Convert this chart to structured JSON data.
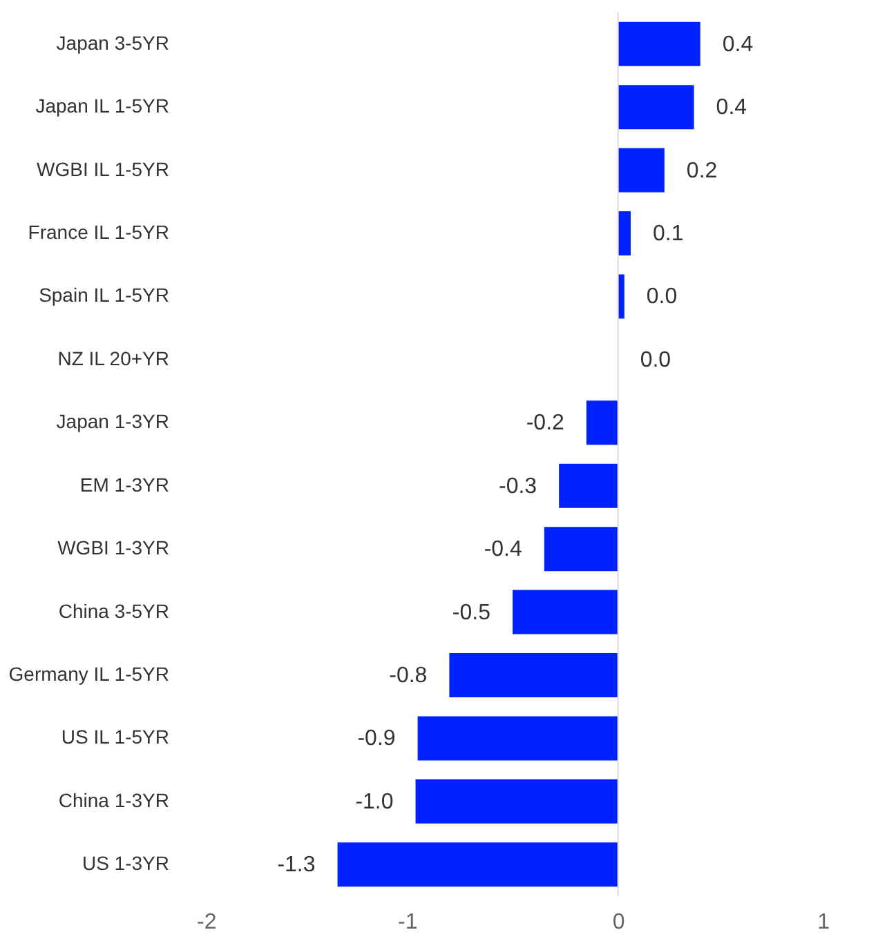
{
  "chart_data": {
    "type": "bar",
    "orientation": "horizontal",
    "categories": [
      "Japan 3-5YR",
      "Japan IL 1-5YR",
      "WGBI IL 1-5YR",
      "France IL 1-5YR",
      "Spain IL 1-5YR",
      "NZ IL 20+YR",
      "Japan 1-3YR",
      "EM 1-3YR",
      "WGBI 1-3YR",
      "China 3-5YR",
      "Germany IL 1-5YR",
      "US IL 1-5YR",
      "China 1-3YR",
      "US 1-3YR"
    ],
    "values": [
      0.39,
      0.36,
      0.22,
      0.06,
      0.03,
      0,
      -0.15,
      -0.28,
      -0.35,
      -0.5,
      -0.8,
      -0.95,
      -0.96,
      -1.33
    ],
    "value_labels": [
      "0.4",
      "0.4",
      "0.2",
      "0.1",
      "0.0",
      "0.0",
      "-0.2",
      "-0.3",
      "-0.4",
      "-0.5",
      "-0.8",
      "-0.9",
      "-1.0",
      "-1.3"
    ],
    "color": "#0022ff",
    "xlim": [
      -2,
      1
    ],
    "xticks": [
      -2,
      -1,
      0,
      1
    ],
    "grid": false,
    "ref_lines": [
      {
        "axis": "x",
        "value": 0,
        "color": "#dddddd"
      }
    ]
  }
}
